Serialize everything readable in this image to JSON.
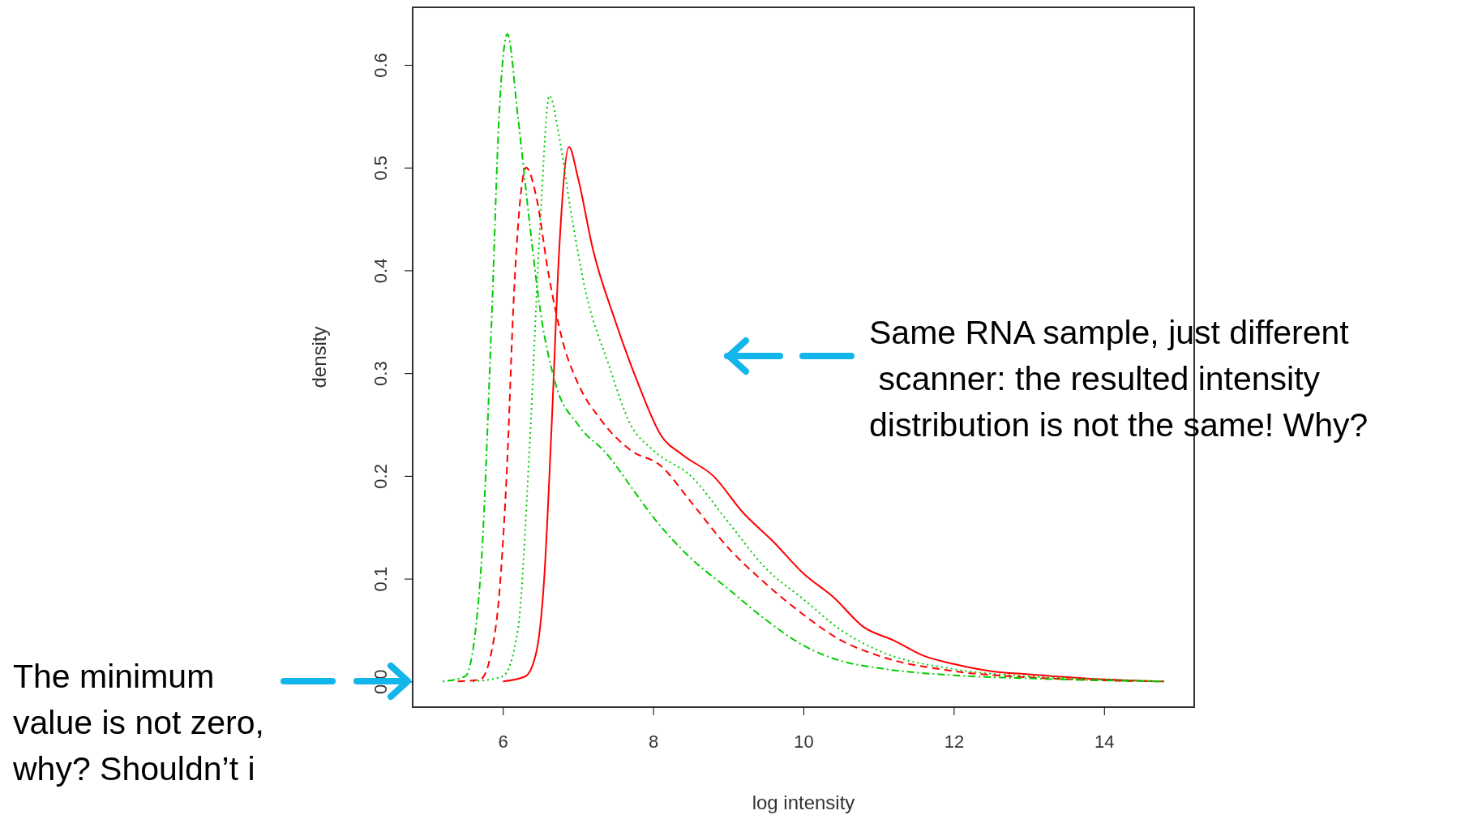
{
  "chart_data": {
    "type": "line",
    "xlabel": "log intensity",
    "ylabel": "density",
    "xlim": [
      4.8,
      15.2
    ],
    "ylim": [
      -0.025,
      0.656
    ],
    "xticks": [
      6,
      8,
      10,
      12,
      14
    ],
    "yticks": [
      {
        "value": 0,
        "label": "0.0"
      },
      {
        "value": 0.1,
        "label": "0.1"
      },
      {
        "value": 0.2,
        "label": "0.2"
      },
      {
        "value": 0.3,
        "label": "0.3"
      },
      {
        "value": 0.4,
        "label": "0.4"
      },
      {
        "value": 0.5,
        "label": "0.5"
      },
      {
        "value": 0.6,
        "label": "0.6"
      }
    ],
    "grid": false,
    "marker": "none",
    "series": [
      {
        "color": "#00cc00",
        "line_style": "dashdot",
        "x": [
          5.2,
          5.5,
          5.7,
          5.85,
          5.95,
          6.06,
          6.2,
          6.35,
          6.5,
          6.7,
          7.0,
          7.4,
          7.7,
          8.0,
          8.5,
          9.0,
          9.5,
          10.0,
          10.5,
          11.0,
          12.0,
          13.0,
          14.0,
          14.8
        ],
        "values": [
          0,
          0.005,
          0.1,
          0.35,
          0.55,
          0.63,
          0.55,
          0.45,
          0.36,
          0.29,
          0.25,
          0.22,
          0.19,
          0.16,
          0.12,
          0.09,
          0.06,
          0.035,
          0.02,
          0.013,
          0.006,
          0.003,
          0.001,
          0
        ]
      },
      {
        "color": "#ff0000",
        "line_style": "dashed",
        "x": [
          5.4,
          5.7,
          5.9,
          6.05,
          6.15,
          6.31,
          6.45,
          6.6,
          6.8,
          7.0,
          7.3,
          7.7,
          8.1,
          8.5,
          9.0,
          9.5,
          10.0,
          10.5,
          11.0,
          12.0,
          13.0,
          14.0,
          14.8
        ],
        "values": [
          0,
          0.002,
          0.05,
          0.2,
          0.38,
          0.5,
          0.47,
          0.4,
          0.33,
          0.29,
          0.255,
          0.225,
          0.21,
          0.175,
          0.13,
          0.095,
          0.065,
          0.04,
          0.025,
          0.01,
          0.004,
          0.001,
          0
        ]
      },
      {
        "color": "#00cc00",
        "line_style": "dotted",
        "x": [
          5.6,
          6.0,
          6.2,
          6.35,
          6.5,
          6.62,
          6.75,
          6.9,
          7.1,
          7.4,
          7.7,
          8.0,
          8.5,
          9.0,
          9.5,
          10.0,
          10.5,
          11.0,
          12.0,
          13.0,
          14.0,
          14.8
        ],
        "values": [
          0,
          0.005,
          0.05,
          0.22,
          0.45,
          0.57,
          0.53,
          0.46,
          0.38,
          0.31,
          0.25,
          0.225,
          0.2,
          0.155,
          0.11,
          0.08,
          0.05,
          0.03,
          0.012,
          0.005,
          0.002,
          0
        ]
      },
      {
        "color": "#ff0000",
        "line_style": "solid",
        "x": [
          6.0,
          6.3,
          6.45,
          6.55,
          6.65,
          6.75,
          6.88,
          7.0,
          7.2,
          7.5,
          7.8,
          8.1,
          8.4,
          8.8,
          9.2,
          9.6,
          10.0,
          10.4,
          10.8,
          11.2,
          11.6,
          12.0,
          12.5,
          13.0,
          14.0,
          14.8
        ],
        "values": [
          0,
          0.005,
          0.03,
          0.1,
          0.25,
          0.42,
          0.52,
          0.49,
          0.42,
          0.35,
          0.29,
          0.24,
          0.22,
          0.2,
          0.164,
          0.136,
          0.105,
          0.082,
          0.053,
          0.04,
          0.025,
          0.017,
          0.01,
          0.007,
          0.002,
          0
        ]
      }
    ],
    "annotations": [
      "Same RNA sample, just different\n scanner: the resulted intensity\ndistribution is not the same! Why?",
      "The minimum\nvalue is not zero,\nwhy? Shouldn’t i"
    ]
  }
}
